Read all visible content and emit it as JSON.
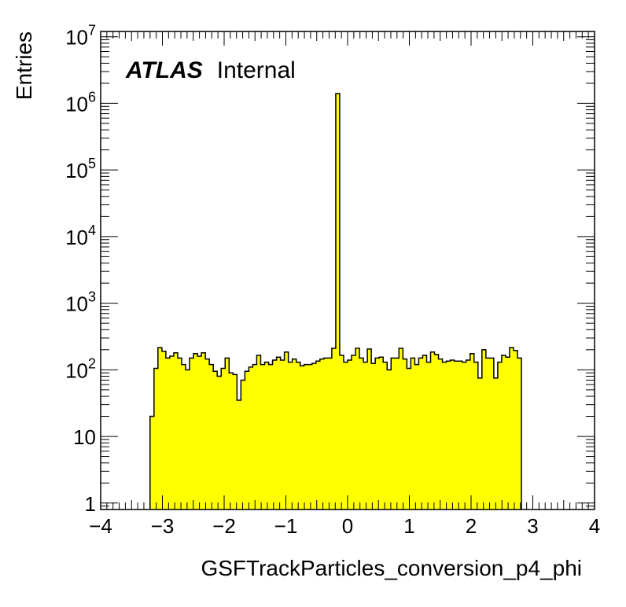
{
  "chart_data": {
    "type": "bar",
    "style": "step-histogram",
    "fill_color": "#ffff00",
    "line_color": "#000000",
    "title": "",
    "xlabel": "GSFTrackParticles_conversion_p4_phi",
    "ylabel": "Entries",
    "xlim": [
      -4,
      4
    ],
    "ylim": [
      0.8,
      12000000
    ],
    "yscale": "log",
    "grid": false,
    "x_ticks": [
      -4,
      -3,
      -2,
      -1,
      0,
      1,
      2,
      3,
      4
    ],
    "x_tick_labels": [
      "−4",
      "−3",
      "−2",
      "−1",
      "0",
      "1",
      "2",
      "3",
      "4"
    ],
    "y_ticks": [
      {
        "value": 1,
        "base": "1",
        "exp": ""
      },
      {
        "value": 10,
        "base": "10",
        "exp": ""
      },
      {
        "value": 100,
        "base": "10",
        "exp": "2"
      },
      {
        "value": 1000,
        "base": "10",
        "exp": "3"
      },
      {
        "value": 10000,
        "base": "10",
        "exp": "4"
      },
      {
        "value": 100000,
        "base": "10",
        "exp": "5"
      },
      {
        "value": 1000000,
        "base": "10",
        "exp": "6"
      },
      {
        "value": 10000000,
        "base": "10",
        "exp": "7"
      }
    ],
    "bin_low": -3.2,
    "bin_width": 0.064,
    "values": [
      20,
      105,
      215,
      190,
      150,
      160,
      180,
      150,
      120,
      100,
      150,
      175,
      160,
      180,
      145,
      120,
      95,
      80,
      105,
      150,
      90,
      85,
      35,
      70,
      95,
      110,
      120,
      165,
      120,
      130,
      120,
      140,
      155,
      140,
      185,
      130,
      145,
      130,
      115,
      120,
      120,
      125,
      135,
      145,
      150,
      150,
      210,
      1400000,
      165,
      130,
      140,
      165,
      210,
      150,
      130,
      205,
      125,
      150,
      155,
      130,
      100,
      150,
      150,
      210,
      145,
      105,
      150,
      120,
      150,
      165,
      130,
      185,
      170,
      145,
      130,
      135,
      140,
      135,
      135,
      130,
      140,
      175,
      130,
      75,
      200,
      150,
      150,
      75,
      130,
      165,
      155,
      215,
      195,
      150
    ],
    "annotations": {
      "atlas": "ATLAS",
      "label": "Internal"
    }
  }
}
